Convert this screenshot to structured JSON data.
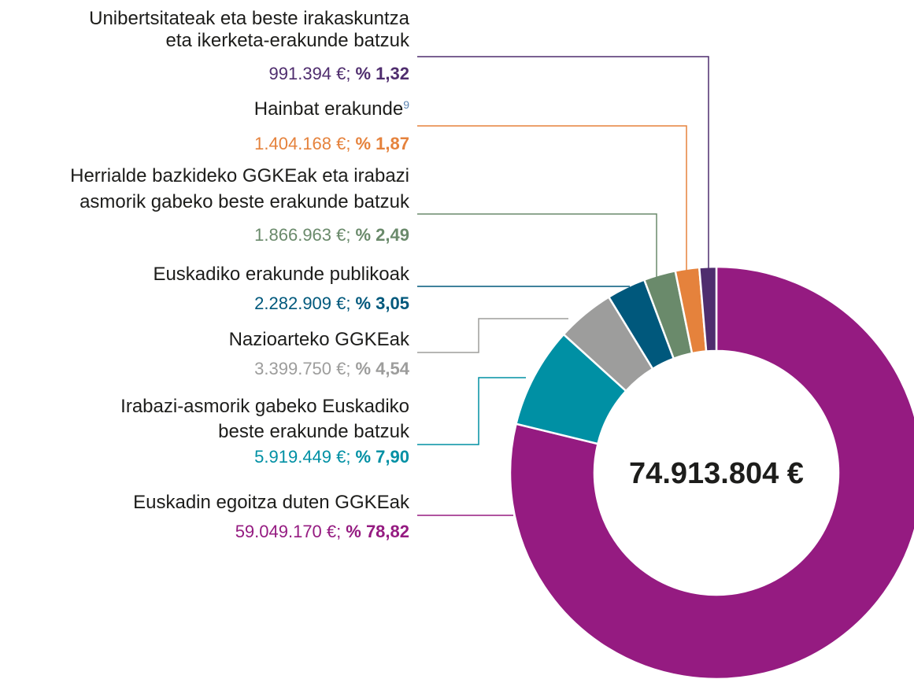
{
  "chart_data": {
    "type": "donut",
    "total_label": "74.913.804 €",
    "categories": [
      [
        "Euskadin egoitza duten GGKEak"
      ],
      [
        "Irabazi-asmorik gabeko Euskadiko",
        "beste erakunde batzuk"
      ],
      [
        "Nazioarteko GGKEak"
      ],
      [
        "Euskadiko erakunde publikoak"
      ],
      [
        "Herrialde bazkideko GGKEak eta irabazi",
        "asmorik gabeko beste erakunde batzuk"
      ],
      [
        "Hainbat erakunde"
      ],
      [
        "Unibertsitateak eta beste irakaskuntza",
        "eta ikerketa-erakunde batzuk"
      ]
    ],
    "footnotes": [
      null,
      null,
      null,
      null,
      null,
      "9",
      null
    ],
    "values": [
      59049170,
      5919449,
      3399750,
      2282909,
      1866963,
      1404168,
      991394
    ],
    "value_labels": [
      "59.049.170 €;",
      "5.919.449 €;",
      "3.399.750 €;",
      "2.282.909 €;",
      "1.866.963 €;",
      "1.404.168 €;",
      "991.394 €;"
    ],
    "percents": [
      78.82,
      7.9,
      4.54,
      3.05,
      2.49,
      1.87,
      1.32
    ],
    "percent_labels": [
      "% 78,82",
      "% 7,90",
      "% 4,54",
      "% 3,05",
      "% 2,49",
      "% 1,87",
      "% 1,32"
    ],
    "colors": [
      "#951b81",
      "#0090a4",
      "#9d9d9c",
      "#00587c",
      "#6a8a6b",
      "#e5823c",
      "#4f2d6e"
    ]
  }
}
